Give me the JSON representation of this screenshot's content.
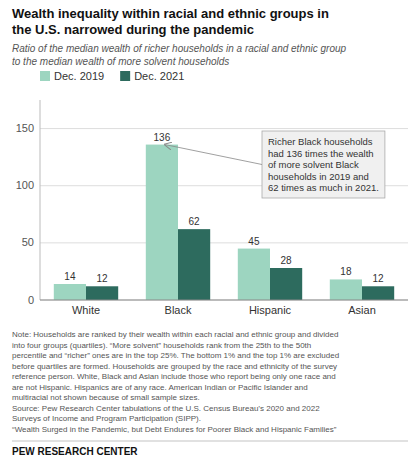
{
  "chart_data": {
    "type": "bar",
    "title": "Wealth inequality within racial and ethnic groups in\nthe U.S. narrowed during the pandemic",
    "subtitle": "Ratio of the median wealth of richer households in a racial and ethnic group\nto the median wealth of more solvent households",
    "categories": [
      "White",
      "Black",
      "Hispanic",
      "Asian"
    ],
    "series": [
      {
        "name": "Dec. 2019",
        "color": "#9dd5c0",
        "values": [
          14,
          136,
          45,
          18
        ]
      },
      {
        "name": "Dec. 2021",
        "color": "#2d6b5e",
        "values": [
          12,
          62,
          28,
          12
        ]
      }
    ],
    "ylim": [
      0,
      175
    ],
    "yticks": [
      0,
      50,
      100,
      150
    ],
    "grid": true,
    "legend": "upper left",
    "data_labels": true,
    "annotation": "Richer Black households\nhad 136 times the wealth\nof more solvent Black\nhouseholds in 2019 and\n62 times as much in 2021.",
    "note": "Note: Households are ranked by their wealth within each racial and ethnic group and divided\ninto four groups (quartiles). “More solvent” households rank from the 25th to the 50th\npercentile and “richer” ones are in the top 25%. The bottom 1% and the top 1% are excluded\nbefore quartiles are formed. Households are grouped by the race and ethnicity of the survey\nreference person. White, Black and Asian include those who report being only one race and\nare not Hispanic. Hispanics are of any race. American Indian or Pacific Islander and\nmultiracial not shown because of small sample sizes.\nSource: Pew Research Center tabulations of the U.S. Census Bureau’s 2020 and 2022\nSurveys of Income and Program Participation (SIPP).\n“Wealth Surged in the Pandemic, but Debt Endures for Poorer Black and Hispanic Families”",
    "source": "PEW RESEARCH CENTER"
  }
}
